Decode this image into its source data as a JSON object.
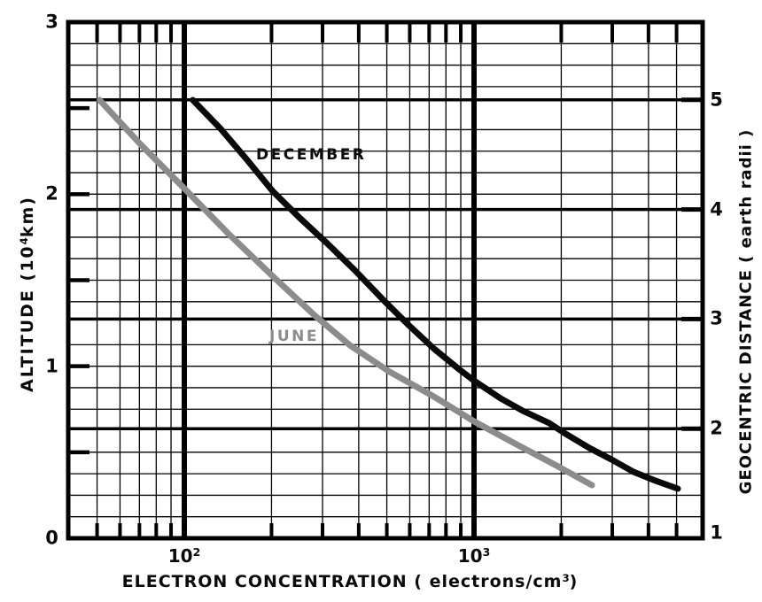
{
  "chart_data": {
    "type": "line",
    "title": "",
    "x_axis": {
      "title_pre": "ELECTRON CONCENTRATION ( electrons/cm",
      "title_sup": "3",
      "title_post": ")",
      "scale": "log",
      "range": [
        40,
        6150
      ],
      "major_ticks": [
        {
          "base": "10",
          "sup": "2",
          "value": 100
        },
        {
          "base": "10",
          "sup": "3",
          "value": 1000
        }
      ],
      "minor_gridlines": [
        50,
        60,
        70,
        80,
        90,
        200,
        300,
        400,
        500,
        600,
        700,
        800,
        900,
        2000,
        3000,
        4000,
        5000
      ]
    },
    "y_axis_left": {
      "title_pre": "ALTITUDE (10",
      "title_sup": "4",
      "title_post": "km)",
      "scale": "linear",
      "range": [
        0,
        3
      ],
      "tick_labels": [
        {
          "label": "3",
          "value": 3
        },
        {
          "label": "2",
          "value": 2
        },
        {
          "label": "1",
          "value": 1
        },
        {
          "label": "0",
          "value": 0
        }
      ],
      "minor_tick_values": [
        0.5,
        1,
        1.5,
        2,
        2.5
      ],
      "grid_rows": 24
    },
    "y_axis_right": {
      "title": "GEOCENTRIC DISTANCE ( earth radii )",
      "unit_earth_radius_1e4km": 0.6371,
      "tick_labels": [
        {
          "label": "5",
          "value": 5
        },
        {
          "label": "4",
          "value": 4
        },
        {
          "label": "3",
          "value": 3
        },
        {
          "label": "2",
          "value": 2
        },
        {
          "label": "1",
          "value": 1
        }
      ],
      "thick_line_values": [
        2,
        3,
        4,
        5
      ]
    },
    "grid": "on",
    "legend": "inline-curve-labels",
    "series": [
      {
        "name": "DECEMBER",
        "color": "#0a0a0a",
        "points": [
          [
            107,
            2.547
          ],
          [
            133,
            2.383
          ],
          [
            164,
            2.203
          ],
          [
            202,
            2.017
          ],
          [
            250,
            1.863
          ],
          [
            309,
            1.719
          ],
          [
            387,
            1.559
          ],
          [
            484,
            1.389
          ],
          [
            598,
            1.235
          ],
          [
            728,
            1.101
          ],
          [
            887,
            0.983
          ],
          [
            1000,
            0.916
          ],
          [
            1235,
            0.813
          ],
          [
            1473,
            0.741
          ],
          [
            1819,
            0.669
          ],
          [
            2050,
            0.612
          ],
          [
            2499,
            0.525
          ],
          [
            2979,
            0.458
          ],
          [
            3553,
            0.386
          ],
          [
            4235,
            0.334
          ],
          [
            5051,
            0.288
          ]
        ]
      },
      {
        "name": "JUNE",
        "color": "#8c8c8c",
        "points": [
          [
            51,
            2.547
          ],
          [
            71,
            2.285
          ],
          [
            100,
            2.033
          ],
          [
            142,
            1.77
          ],
          [
            202,
            1.523
          ],
          [
            281,
            1.297
          ],
          [
            373,
            1.122
          ],
          [
            512,
            0.967
          ],
          [
            728,
            0.823
          ],
          [
            1000,
            0.679
          ],
          [
            1422,
            0.54
          ],
          [
            1953,
            0.417
          ],
          [
            2552,
            0.309
          ]
        ]
      }
    ]
  }
}
